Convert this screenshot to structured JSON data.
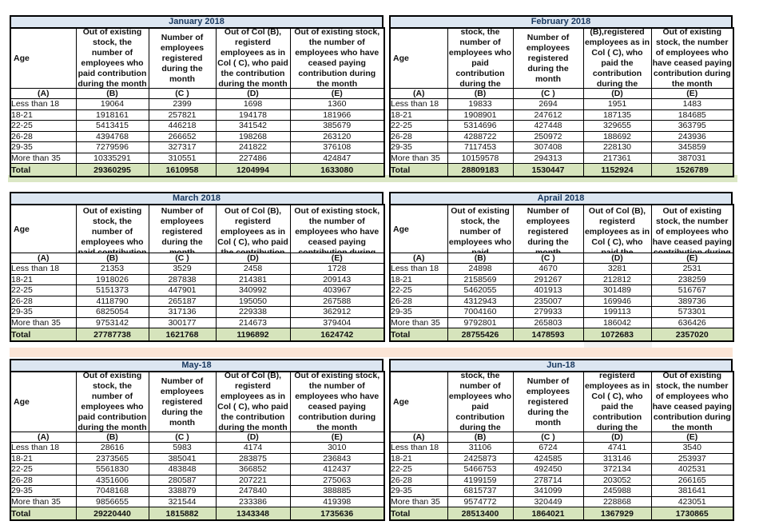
{
  "shared": {
    "age_label": "Age",
    "total_label": "Total",
    "column_letters": [
      "(A)",
      "(B)",
      "(C )",
      "(D)",
      "(E)"
    ]
  },
  "theme": {
    "title-bg": "#dce6f1",
    "title-text": "#17375e",
    "total-bg": "#d6e4bc",
    "total-text": "#3b5323",
    "band-green": "#dbe7c5",
    "band-peach": "#fbe5d6",
    "artifact-gray": "#f1f1f1",
    "border": "#000000"
  },
  "tables": [
    {
      "id": "january",
      "variant": "left",
      "title": "January 2018",
      "headers": {
        "b": "Out of existing stock, the number of employees who paid contribution during the month",
        "c": "Number of employees registered during the month",
        "d": "Out of Col (B), registerd employees as in Col ( C), who paid the contribution during the month",
        "e": "Out of existing stock, the number of  employees who have ceased paying contribution during the month"
      },
      "rows": [
        [
          "Less than 18",
          "19064",
          "2399",
          "1698",
          "1360"
        ],
        [
          "18-21",
          "1918161",
          "257821",
          "194178",
          "181966"
        ],
        [
          "22-25",
          "5413415",
          "446218",
          "341542",
          "385679"
        ],
        [
          "26-28",
          "4394768",
          "266652",
          "198268",
          "263120"
        ],
        [
          "29-35",
          "7279596",
          "327317",
          "241822",
          "376108"
        ],
        [
          "More than 35",
          "10335291",
          "310551",
          "227486",
          "424847"
        ]
      ],
      "totals": [
        "29360295",
        "1610958",
        "1204994",
        "1633080"
      ]
    },
    {
      "id": "february",
      "variant": "right",
      "title": "February 2018",
      "headers": {
        "b": "Out of existing stock, the number of employees who paid contribution during the month",
        "c": "Number of employees registered during the month",
        "d": "Out of Col (B),registered employees as in Col ( C), who paid the contribution during the month",
        "e": "Out of existing stock, the number of employees  who have ceased paying contribution during the month"
      },
      "rows": [
        [
          "Less than 18",
          "19833",
          "2694",
          "1951",
          "1483"
        ],
        [
          "18-21",
          "1908901",
          "247612",
          "187135",
          "184685"
        ],
        [
          "22-25",
          "5314696",
          "427448",
          "329655",
          "363795"
        ],
        [
          "26-28",
          "4288722",
          "250972",
          "188692",
          "243936"
        ],
        [
          "29-35",
          "7117453",
          "307408",
          "228130",
          "345859"
        ],
        [
          "More than 35",
          "10159578",
          "294313",
          "217361",
          "387031"
        ]
      ],
      "totals": [
        "28809183",
        "1530447",
        "1152924",
        "1526789"
      ]
    },
    {
      "id": "march",
      "variant": "left",
      "title": "March 2018",
      "headers": {
        "b": "Out of existing stock, the number of employees who paid contribution during the month",
        "c": "Number of employees registered during the month",
        "d": "Out of Col (B), registerd employees as in Col ( C), who paid the contribution during the month",
        "e": "Out of existing stock, the number of  employees who have ceased paying contribution during the month"
      },
      "rows": [
        [
          "Less than 18",
          "21353",
          "3529",
          "2458",
          "1728"
        ],
        [
          "18-21",
          "1918026",
          "287838",
          "214381",
          "209143"
        ],
        [
          "22-25",
          "5151373",
          "447901",
          "340992",
          "403967"
        ],
        [
          "26-28",
          "4118790",
          "265187",
          "195050",
          "267588"
        ],
        [
          "29-35",
          "6825054",
          "317136",
          "229338",
          "362912"
        ],
        [
          "More than 35",
          "9753142",
          "300177",
          "214673",
          "379404"
        ]
      ],
      "totals": [
        "27787738",
        "1621768",
        "1196892",
        "1624742"
      ]
    },
    {
      "id": "april",
      "variant": "right",
      "title": "Aprail 2018",
      "headers": {
        "b": "Out of existing stock, the number of employees who paid contribution during the month",
        "c": "Number of employees registered during the month",
        "d": "Out of Col (B), registerd employees as in Col ( C), who paid the contribution during the month",
        "e": "Out of existing stock, the number of employees  who have ceased paying contribution during the month"
      },
      "rows": [
        [
          "Less than 18",
          "24898",
          "4670",
          "3281",
          "2531"
        ],
        [
          "18-21",
          "2158569",
          "291267",
          "212812",
          "238259"
        ],
        [
          "22-25",
          "5462055",
          "401913",
          "301489",
          "516767"
        ],
        [
          "26-28",
          "4312943",
          "235007",
          "169946",
          "389736"
        ],
        [
          "29-35",
          "7004160",
          "279933",
          "199113",
          "573301"
        ],
        [
          "More than 35",
          "9792801",
          "265803",
          "186042",
          "636426"
        ]
      ],
      "totals": [
        "28755426",
        "1478593",
        "1072683",
        "2357020"
      ]
    },
    {
      "id": "may",
      "variant": "left",
      "title": "May-18",
      "headers": {
        "b": "Out of existing stock, the number of employees who paid contribution during the month",
        "c": "Number of employees registered during the month",
        "d": "Out of Col (B), registerd employees as in Col ( C), who paid the contribution during the month",
        "e": "Out of existing stock, the number of  employees who have ceased paying contribution during the month"
      },
      "rows": [
        [
          "Less than 18",
          "28616",
          "5983",
          "4174",
          "3010"
        ],
        [
          "18-21",
          "2373565",
          "385041",
          "283875",
          "236843"
        ],
        [
          "22-25",
          "5561830",
          "483848",
          "366852",
          "412437"
        ],
        [
          "26-28",
          "4351606",
          "280587",
          "207221",
          "275063"
        ],
        [
          "29-35",
          "7048168",
          "338879",
          "247840",
          "388885"
        ],
        [
          "More than 35",
          "9856655",
          "321544",
          "233386",
          "419398"
        ]
      ],
      "totals": [
        "29220440",
        "1815882",
        "1343348",
        "1735636"
      ]
    },
    {
      "id": "june",
      "variant": "right",
      "title": "Jun-18",
      "headers": {
        "b": "Out of existing stock, the number of employees who paid contribution during the month",
        "c": "Number of employees registered during the month",
        "d": "Out of Col (B), registerd employees as in Col ( C), who paid the contribution during the month",
        "e": "Out of existing stock, the number of employees  who have ceased paying contribution during the month"
      },
      "rows": [
        [
          "Less than 18",
          "31106",
          "6724",
          "4741",
          "3540"
        ],
        [
          "18-21",
          "2425873",
          "424585",
          "313146",
          "253937"
        ],
        [
          "22-25",
          "5466753",
          "492450",
          "372134",
          "402531"
        ],
        [
          "26-28",
          "4199159",
          "278714",
          "203052",
          "266165"
        ],
        [
          "29-35",
          "6815737",
          "341099",
          "245988",
          "381641"
        ],
        [
          "More than 35",
          "9574772",
          "320449",
          "228868",
          "423051"
        ]
      ],
      "totals": [
        "28513400",
        "1864021",
        "1367929",
        "1730865"
      ]
    }
  ]
}
